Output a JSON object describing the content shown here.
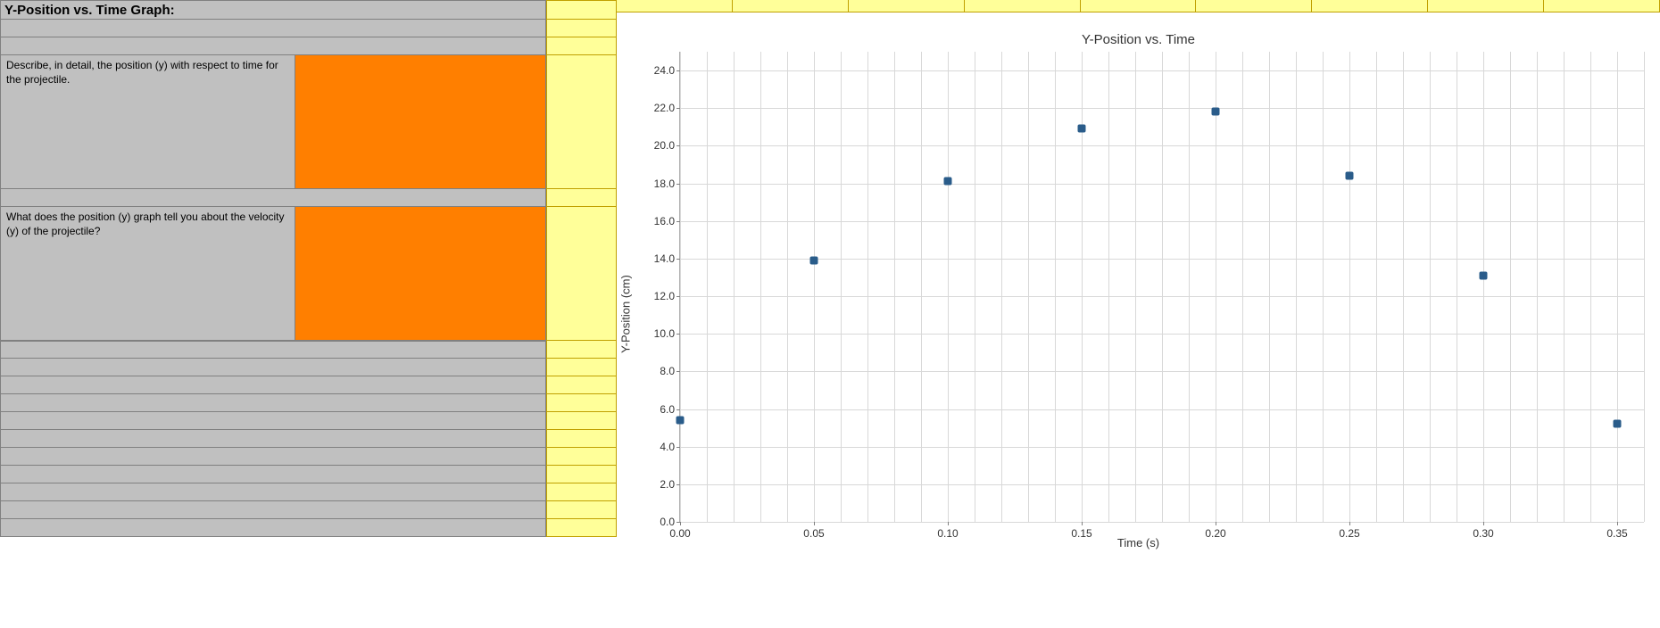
{
  "header": {
    "title": "Y-Position vs. Time Graph:"
  },
  "questions": [
    {
      "text": "Describe, in detail, the position (y) with respect to time for the projectile."
    },
    {
      "text": "What does the position (y) graph tell you about the velocity (y) of the projectile?"
    }
  ],
  "chart": {
    "type": "scatter",
    "title": "Y-Position vs. Time",
    "xlabel": "Time (s)",
    "ylabel": "Y-Position (cm)",
    "xlim": [
      0.0,
      0.36
    ],
    "ylim": [
      0.0,
      25.0
    ],
    "xticks": [
      0.0,
      0.05,
      0.1,
      0.15,
      0.2,
      0.25,
      0.3,
      0.35
    ],
    "xtick_labels": [
      "0.00",
      "0.05",
      "0.10",
      "0.15",
      "0.20",
      "0.25",
      "0.30",
      "0.35"
    ],
    "yticks": [
      0.0,
      2.0,
      4.0,
      6.0,
      8.0,
      10.0,
      12.0,
      14.0,
      16.0,
      18.0,
      20.0,
      22.0,
      24.0
    ],
    "ytick_labels": [
      "0.0",
      "2.0",
      "4.0",
      "6.0",
      "8.0",
      "10.0",
      "12.0",
      "14.0",
      "16.0",
      "18.0",
      "20.0",
      "22.0",
      "24.0"
    ],
    "x_minor_gridstep": 0.01,
    "y_minor_gridstep": 2.0,
    "points_x": [
      0.0,
      0.05,
      0.1,
      0.15,
      0.2,
      0.25,
      0.3,
      0.35
    ],
    "points_y": [
      5.4,
      13.9,
      18.1,
      20.9,
      21.8,
      18.4,
      13.1,
      5.2
    ],
    "marker_color": "#2a5c8a",
    "marker_size": 9,
    "background_color": "#ffffff",
    "grid_color": "#d8d8d8",
    "title_fontsize": 15,
    "label_fontsize": 13,
    "tick_fontsize": 12
  },
  "colors": {
    "gray_cell": "#c0c0c0",
    "yellow_cell": "#ffff99",
    "orange_cell": "#ff7f00",
    "grid_border_gray": "#808080",
    "grid_border_yellow": "#c0a000"
  },
  "left_panel": {
    "blank_rows_between": 1,
    "blank_rows_after": 11
  }
}
